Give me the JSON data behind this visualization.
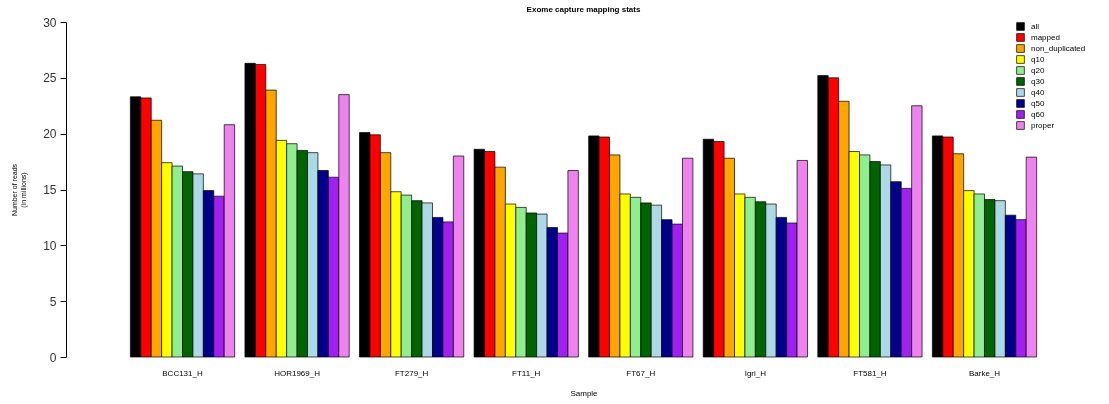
{
  "chart_data": {
    "type": "bar",
    "title": "Exome capture mapping stats",
    "xlabel": "Sample",
    "ylabel": "Number of reads\n(in millions)",
    "categories": [
      "BCC131_H",
      "HOR1969_H",
      "FT279_H",
      "FT11_H",
      "FT67_H",
      "Igri_H",
      "FT581_H",
      "Barke_H"
    ],
    "series": [
      {
        "name": "all",
        "color": "#000000",
        "values": [
          23.3,
          26.3,
          20.1,
          18.6,
          19.8,
          19.5,
          25.2,
          19.8
        ]
      },
      {
        "name": "mapped",
        "color": "#ff0000",
        "values": [
          23.2,
          26.2,
          19.9,
          18.4,
          19.7,
          19.3,
          25.0,
          19.7
        ]
      },
      {
        "name": "non_duplicated",
        "color": "#ffa500",
        "values": [
          21.2,
          23.9,
          18.3,
          17.0,
          18.1,
          17.8,
          22.9,
          18.2
        ]
      },
      {
        "name": "q10",
        "color": "#ffff00",
        "values": [
          17.4,
          19.4,
          14.8,
          13.7,
          14.6,
          14.6,
          18.4,
          14.9
        ]
      },
      {
        "name": "q20",
        "color": "#90ee90",
        "values": [
          17.1,
          19.1,
          14.5,
          13.4,
          14.3,
          14.3,
          18.1,
          14.6
        ]
      },
      {
        "name": "q30",
        "color": "#006400",
        "values": [
          16.6,
          18.5,
          14.0,
          12.9,
          13.8,
          13.9,
          17.5,
          14.1
        ]
      },
      {
        "name": "q40",
        "color": "#add8e6",
        "values": [
          16.4,
          18.3,
          13.8,
          12.8,
          13.6,
          13.7,
          17.2,
          14.0
        ]
      },
      {
        "name": "q50",
        "color": "#00008b",
        "values": [
          14.9,
          16.7,
          12.5,
          11.6,
          12.3,
          12.5,
          15.7,
          12.7
        ]
      },
      {
        "name": "q60",
        "color": "#a020f0",
        "values": [
          14.4,
          16.1,
          12.1,
          11.1,
          11.9,
          12.0,
          15.1,
          12.3
        ]
      },
      {
        "name": "proper",
        "color": "#ee82ee",
        "values": [
          20.8,
          23.5,
          18.0,
          16.7,
          17.8,
          17.6,
          22.5,
          17.9
        ]
      }
    ],
    "ylim": [
      0,
      30
    ],
    "yticks": [
      0,
      5,
      10,
      15,
      20,
      25,
      30
    ],
    "grid": false,
    "legend": "top right"
  }
}
